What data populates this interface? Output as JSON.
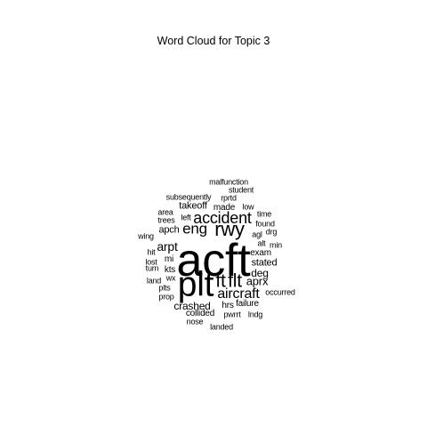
{
  "title": "Word Cloud for Topic 3",
  "words": [
    {
      "text": "acft",
      "weight": 10
    },
    {
      "text": "plt",
      "weight": 7.5
    },
    {
      "text": "rwy",
      "weight": 4.2
    },
    {
      "text": "ft",
      "weight": 4.0
    },
    {
      "text": "flt",
      "weight": 4.0
    },
    {
      "text": "accident",
      "weight": 3.4
    },
    {
      "text": "eng",
      "weight": 3.2
    },
    {
      "text": "aircraft",
      "weight": 3.0
    },
    {
      "text": "arpt",
      "weight": 2.6
    },
    {
      "text": "aprx",
      "weight": 2.5
    },
    {
      "text": "crashed",
      "weight": 2.4
    },
    {
      "text": "deg",
      "weight": 2.3
    },
    {
      "text": "stated",
      "weight": 2.2
    },
    {
      "text": "takeoff",
      "weight": 2.2
    },
    {
      "text": "apch",
      "weight": 2.2
    },
    {
      "text": "exam",
      "weight": 2.0
    },
    {
      "text": "mi",
      "weight": 2.0
    },
    {
      "text": "kts",
      "weight": 2.0
    },
    {
      "text": "made",
      "weight": 2.0
    },
    {
      "text": "failure",
      "weight": 2.0
    },
    {
      "text": "hrs",
      "weight": 2.0
    },
    {
      "text": "collided",
      "weight": 2.0
    },
    {
      "text": "malfunction",
      "weight": 1.8
    },
    {
      "text": "student",
      "weight": 1.8
    },
    {
      "text": "subsequently",
      "weight": 1.8
    },
    {
      "text": "rprtd",
      "weight": 1.8
    },
    {
      "text": "low",
      "weight": 1.8
    },
    {
      "text": "area",
      "weight": 1.8
    },
    {
      "text": "left",
      "weight": 1.8
    },
    {
      "text": "time",
      "weight": 1.8
    },
    {
      "text": "trees",
      "weight": 1.8
    },
    {
      "text": "found",
      "weight": 1.8
    },
    {
      "text": "agl",
      "weight": 1.8
    },
    {
      "text": "drg",
      "weight": 1.7
    },
    {
      "text": "wing",
      "weight": 1.7
    },
    {
      "text": "alt",
      "weight": 1.7
    },
    {
      "text": "min",
      "weight": 1.7
    },
    {
      "text": "hit",
      "weight": 1.7
    },
    {
      "text": "lost",
      "weight": 1.7
    },
    {
      "text": "turn",
      "weight": 1.7
    },
    {
      "text": "wx",
      "weight": 1.7
    },
    {
      "text": "land",
      "weight": 1.7
    },
    {
      "text": "plts",
      "weight": 1.7
    },
    {
      "text": "prop",
      "weight": 1.7
    },
    {
      "text": "occurred",
      "weight": 1.7
    },
    {
      "text": "nose",
      "weight": 1.7
    },
    {
      "text": "pwrrt",
      "weight": 1.7
    },
    {
      "text": "lndg",
      "weight": 1.7
    },
    {
      "text": "landed",
      "weight": 1.8
    }
  ]
}
